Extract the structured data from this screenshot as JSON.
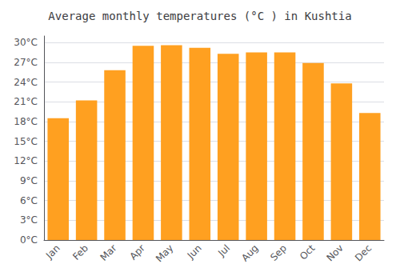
{
  "chart_data": {
    "type": "bar",
    "title": "Average monthly temperatures (°C ) in Kushtia",
    "categories": [
      "Jan",
      "Feb",
      "Mar",
      "Apr",
      "May",
      "Jun",
      "Jul",
      "Aug",
      "Sep",
      "Oct",
      "Nov",
      "Dec"
    ],
    "values": [
      18.5,
      21.2,
      25.8,
      29.5,
      29.6,
      29.2,
      28.3,
      28.5,
      28.5,
      26.9,
      23.8,
      19.3
    ],
    "color": "#FFA020",
    "ylim": [
      0,
      31
    ],
    "yticks": [
      {
        "value": 0,
        "label": "0°C"
      },
      {
        "value": 3,
        "label": "3°C"
      },
      {
        "value": 6,
        "label": "6°C"
      },
      {
        "value": 9,
        "label": "9°C"
      },
      {
        "value": 12,
        "label": "12°C"
      },
      {
        "value": 15,
        "label": "15°C"
      },
      {
        "value": 18,
        "label": "18°C"
      },
      {
        "value": 21,
        "label": "21°C"
      },
      {
        "value": 24,
        "label": "24°C"
      },
      {
        "value": 27,
        "label": "27°C"
      },
      {
        "value": 30,
        "label": "30°C"
      }
    ],
    "grid": true
  }
}
